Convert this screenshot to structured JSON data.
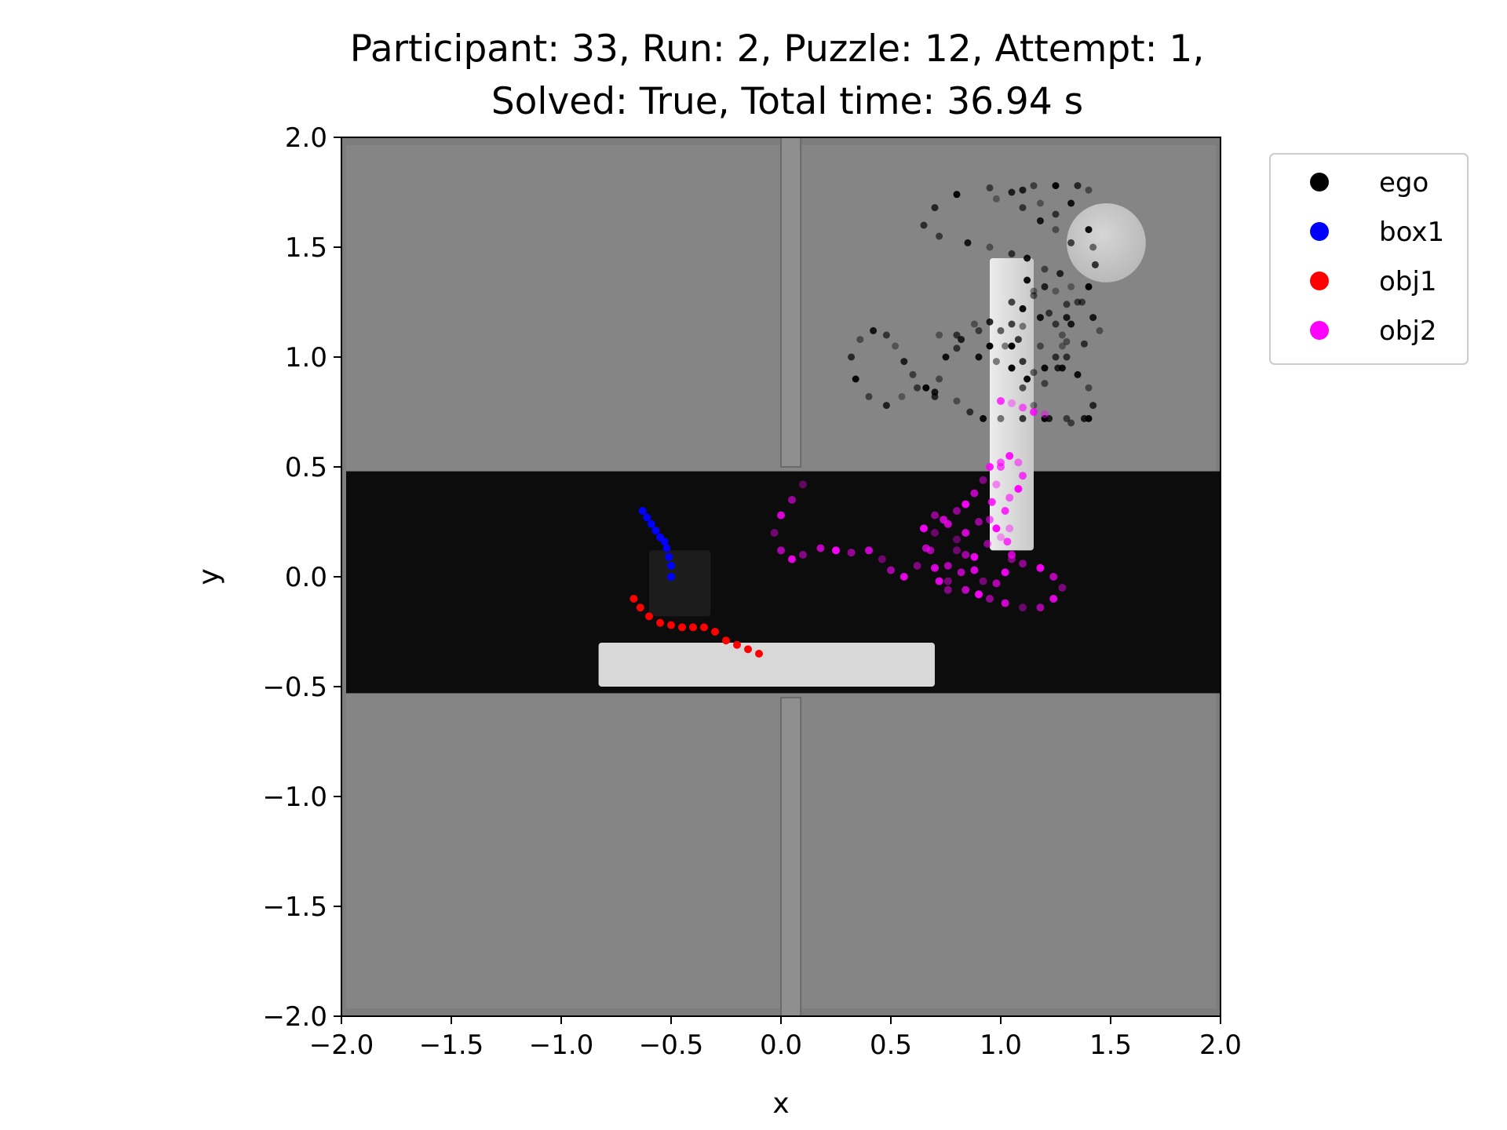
{
  "chart_data": {
    "type": "scatter",
    "title": "Participant: 33, Run: 2, Puzzle: 12, Attempt: 1,",
    "subtitle": "Solved: True, Total time: 36.94 s",
    "xlabel": "x",
    "ylabel": "y",
    "xlim": [
      -2.0,
      2.0
    ],
    "ylim": [
      -2.0,
      2.0
    ],
    "xticks": [
      "−2.0",
      "−1.5",
      "−1.0",
      "−0.5",
      "0.0",
      "0.5",
      "1.0",
      "1.5",
      "2.0"
    ],
    "yticks": [
      "2.0",
      "1.5",
      "1.0",
      "0.5",
      "0.0",
      "−0.5",
      "−1.0",
      "−1.5",
      "−2.0"
    ],
    "legend_position": "outside-top-right",
    "background": {
      "floor_color": "#7d7d7d",
      "band_color": "#0c0c0c",
      "band_y": [
        -0.53,
        0.48
      ],
      "divider_x": [
        0.0,
        0.09
      ],
      "divider_top_y": [
        0.5,
        2.0
      ],
      "divider_bottom_y": [
        -2.0,
        -0.55
      ],
      "platform_x": [
        -0.83,
        0.7
      ],
      "platform_y": [
        -0.5,
        -0.3
      ],
      "pillar_x": [
        0.95,
        1.15
      ],
      "pillar_y": [
        0.12,
        1.45
      ],
      "dark_box_x": [
        -0.6,
        -0.32
      ],
      "dark_box_y": [
        -0.18,
        0.12
      ],
      "disk_center": [
        1.48,
        1.52
      ],
      "disk_radius": 0.18,
      "color_platform": "#d8d8d8",
      "color_pillar": "#dedede",
      "color_disk": "#c8c8c8"
    },
    "series": [
      {
        "name": "ego",
        "color": "#000000",
        "points": [
          [
            0.65,
            1.6
          ],
          [
            0.72,
            1.55
          ],
          [
            0.85,
            1.52
          ],
          [
            0.95,
            1.5
          ],
          [
            1.05,
            1.47
          ],
          [
            1.12,
            1.45
          ],
          [
            0.65,
            1.6
          ],
          [
            0.7,
            1.68
          ],
          [
            0.8,
            1.74
          ],
          [
            0.95,
            1.77
          ],
          [
            1.1,
            1.76
          ],
          [
            1.18,
            1.7
          ],
          [
            1.25,
            1.65
          ],
          [
            1.32,
            1.7
          ],
          [
            1.4,
            1.76
          ],
          [
            1.35,
            1.78
          ],
          [
            1.25,
            1.78
          ],
          [
            1.15,
            1.78
          ],
          [
            1.05,
            1.75
          ],
          [
            0.98,
            1.72
          ],
          [
            1.1,
            1.68
          ],
          [
            1.18,
            1.62
          ],
          [
            1.25,
            1.58
          ],
          [
            1.32,
            1.52
          ],
          [
            1.4,
            1.58
          ],
          [
            1.42,
            1.5
          ],
          [
            1.43,
            1.42
          ],
          [
            1.4,
            1.32
          ],
          [
            1.35,
            1.25
          ],
          [
            1.3,
            1.18
          ],
          [
            1.28,
            1.1
          ],
          [
            1.3,
            1.0
          ],
          [
            1.35,
            0.92
          ],
          [
            1.4,
            0.86
          ],
          [
            1.42,
            0.78
          ],
          [
            1.4,
            0.72
          ],
          [
            1.32,
            0.7
          ],
          [
            1.22,
            0.72
          ],
          [
            1.15,
            0.78
          ],
          [
            1.1,
            0.86
          ],
          [
            1.05,
            0.95
          ],
          [
            1.02,
            1.05
          ],
          [
            1.05,
            1.15
          ],
          [
            1.1,
            1.22
          ],
          [
            1.15,
            1.28
          ],
          [
            1.2,
            1.32
          ],
          [
            1.25,
            1.3
          ],
          [
            1.3,
            1.24
          ],
          [
            1.32,
            1.15
          ],
          [
            1.3,
            1.07
          ],
          [
            1.25,
            1.0
          ],
          [
            1.2,
            0.95
          ],
          [
            1.15,
            0.93
          ],
          [
            1.1,
            0.98
          ],
          [
            1.05,
            1.05
          ],
          [
            1.0,
            1.12
          ],
          [
            0.95,
            1.16
          ],
          [
            0.88,
            1.15
          ],
          [
            0.8,
            1.1
          ],
          [
            0.75,
            1.0
          ],
          [
            0.72,
            0.9
          ],
          [
            0.7,
            0.82
          ],
          [
            0.66,
            0.86
          ],
          [
            0.6,
            0.92
          ],
          [
            0.56,
            0.98
          ],
          [
            0.52,
            1.05
          ],
          [
            0.48,
            1.1
          ],
          [
            0.42,
            1.12
          ],
          [
            0.36,
            1.08
          ],
          [
            0.32,
            1.0
          ],
          [
            0.34,
            0.9
          ],
          [
            0.4,
            0.82
          ],
          [
            0.48,
            0.78
          ],
          [
            0.55,
            0.82
          ],
          [
            0.62,
            0.86
          ],
          [
            0.7,
            0.84
          ],
          [
            0.8,
            0.8
          ],
          [
            0.86,
            0.75
          ],
          [
            0.92,
            0.72
          ],
          [
            1.0,
            0.72
          ],
          [
            1.1,
            0.72
          ],
          [
            1.2,
            0.72
          ],
          [
            1.3,
            0.72
          ],
          [
            1.38,
            0.72
          ],
          [
            0.72,
            1.1
          ],
          [
            0.8,
            1.04
          ],
          [
            0.9,
            1.0
          ],
          [
            0.98,
            0.98
          ],
          [
            1.05,
            0.95
          ],
          [
            1.12,
            0.9
          ],
          [
            1.2,
            0.88
          ],
          [
            1.26,
            0.95
          ],
          [
            1.28,
            1.05
          ],
          [
            1.25,
            1.15
          ],
          [
            1.18,
            1.18
          ],
          [
            1.1,
            1.14
          ],
          [
            1.05,
            1.25
          ],
          [
            1.12,
            1.35
          ],
          [
            1.2,
            1.4
          ],
          [
            1.27,
            1.38
          ],
          [
            1.32,
            1.32
          ],
          [
            1.37,
            1.25
          ],
          [
            1.42,
            1.18
          ],
          [
            1.45,
            1.12
          ],
          [
            1.38,
            1.06
          ],
          [
            1.28,
            0.95
          ],
          [
            1.18,
            1.05
          ],
          [
            1.08,
            1.08
          ],
          [
            0.95,
            1.05
          ],
          [
            0.9,
            1.12
          ],
          [
            0.82,
            1.08
          ],
          [
            1.15,
            1.3
          ],
          [
            1.22,
            1.2
          ]
        ]
      },
      {
        "name": "box1",
        "color": "#0000ff",
        "points": [
          [
            -0.63,
            0.3
          ],
          [
            -0.61,
            0.27
          ],
          [
            -0.59,
            0.24
          ],
          [
            -0.57,
            0.21
          ],
          [
            -0.55,
            0.18
          ],
          [
            -0.53,
            0.16
          ],
          [
            -0.52,
            0.13
          ],
          [
            -0.51,
            0.09
          ],
          [
            -0.5,
            0.05
          ],
          [
            -0.5,
            0.0
          ]
        ]
      },
      {
        "name": "obj1",
        "color": "#ff0000",
        "points": [
          [
            -0.67,
            -0.1
          ],
          [
            -0.64,
            -0.14
          ],
          [
            -0.6,
            -0.18
          ],
          [
            -0.55,
            -0.21
          ],
          [
            -0.5,
            -0.22
          ],
          [
            -0.45,
            -0.23
          ],
          [
            -0.4,
            -0.23
          ],
          [
            -0.35,
            -0.23
          ],
          [
            -0.3,
            -0.25
          ],
          [
            -0.25,
            -0.29
          ],
          [
            -0.2,
            -0.31
          ],
          [
            -0.15,
            -0.33
          ],
          [
            -0.1,
            -0.35
          ]
        ]
      },
      {
        "name": "obj2",
        "color": "#ff00ff",
        "points": [
          [
            0.1,
            0.42
          ],
          [
            0.05,
            0.35
          ],
          [
            0.0,
            0.28
          ],
          [
            -0.03,
            0.2
          ],
          [
            0.0,
            0.12
          ],
          [
            0.05,
            0.08
          ],
          [
            0.1,
            0.1
          ],
          [
            0.18,
            0.13
          ],
          [
            0.25,
            0.12
          ],
          [
            0.32,
            0.11
          ],
          [
            0.4,
            0.12
          ],
          [
            0.46,
            0.08
          ],
          [
            0.5,
            0.03
          ],
          [
            0.56,
            0.0
          ],
          [
            0.62,
            0.05
          ],
          [
            0.66,
            0.13
          ],
          [
            0.65,
            0.22
          ],
          [
            0.7,
            0.28
          ],
          [
            0.76,
            0.24
          ],
          [
            0.8,
            0.17
          ],
          [
            0.84,
            0.1
          ],
          [
            0.88,
            0.03
          ],
          [
            0.92,
            -0.02
          ],
          [
            0.98,
            -0.03
          ],
          [
            1.02,
            0.02
          ],
          [
            1.05,
            0.08
          ],
          [
            1.03,
            0.16
          ],
          [
            0.98,
            0.22
          ],
          [
            0.9,
            0.25
          ],
          [
            0.84,
            0.2
          ],
          [
            0.8,
            0.12
          ],
          [
            0.76,
            0.05
          ],
          [
            0.72,
            -0.02
          ],
          [
            0.76,
            -0.06
          ],
          [
            0.84,
            -0.06
          ],
          [
            0.9,
            -0.08
          ],
          [
            0.95,
            -0.1
          ],
          [
            1.02,
            -0.12
          ],
          [
            1.1,
            -0.14
          ],
          [
            1.18,
            -0.14
          ],
          [
            1.24,
            -0.1
          ],
          [
            1.28,
            -0.05
          ],
          [
            1.24,
            0.0
          ],
          [
            1.18,
            0.04
          ],
          [
            1.1,
            0.06
          ],
          [
            1.05,
            0.1
          ],
          [
            1.0,
            0.18
          ],
          [
            0.95,
            0.26
          ],
          [
            0.96,
            0.34
          ],
          [
            0.98,
            0.42
          ],
          [
            1.0,
            0.5
          ],
          [
            1.04,
            0.55
          ],
          [
            1.08,
            0.52
          ],
          [
            1.1,
            0.46
          ],
          [
            1.08,
            0.4
          ],
          [
            1.04,
            0.36
          ],
          [
            1.02,
            0.3
          ],
          [
            1.04,
            0.22
          ],
          [
            1.0,
            0.52
          ],
          [
            0.95,
            0.5
          ],
          [
            0.92,
            0.44
          ],
          [
            0.88,
            0.38
          ],
          [
            0.84,
            0.33
          ],
          [
            0.8,
            0.3
          ],
          [
            0.74,
            0.26
          ],
          [
            0.7,
            0.2
          ],
          [
            0.68,
            0.12
          ],
          [
            0.7,
            0.04
          ],
          [
            0.76,
            -0.02
          ],
          [
            0.82,
            0.02
          ],
          [
            0.88,
            0.09
          ],
          [
            0.94,
            0.15
          ],
          [
            1.0,
            0.8
          ],
          [
            1.05,
            0.79
          ],
          [
            1.1,
            0.77
          ],
          [
            1.15,
            0.75
          ],
          [
            1.2,
            0.74
          ]
        ]
      }
    ]
  }
}
